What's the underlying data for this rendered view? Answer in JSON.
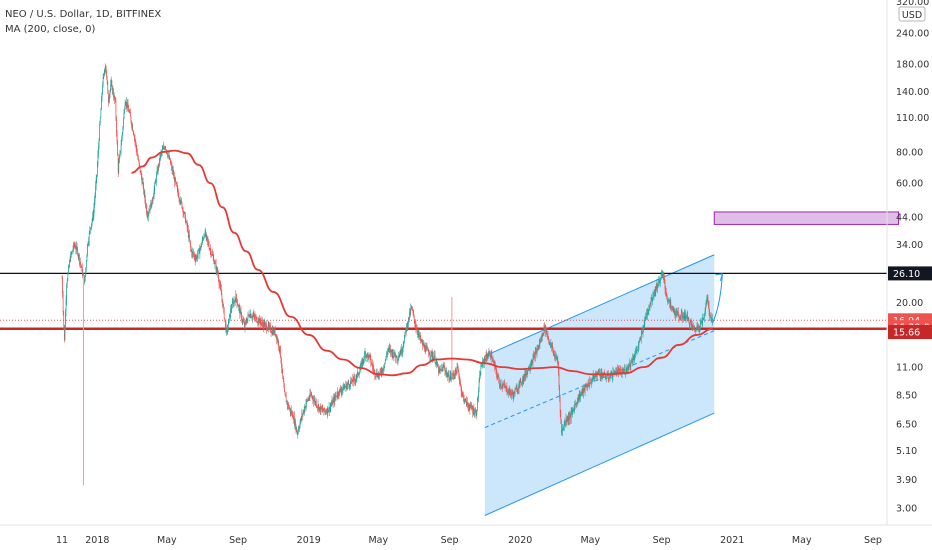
{
  "legend": {
    "symbol_line": "NEO / U.S. Dollar, 1D, BITFINEX",
    "indicator_line": "MA (200, close, 0)"
  },
  "currency_button": "USD",
  "colors": {
    "up_candle": "#26a69a",
    "down_candle": "#ef5350",
    "ma": "#e53935",
    "channel_fill": "#bbdefb",
    "channel_line": "#2196f3",
    "zone_fill": "#e1bee7",
    "zone_border": "#9c27b0",
    "support_line": "#c62828",
    "resistance_line": "#111111"
  },
  "chart_data": {
    "type": "candlestick",
    "scale": "log",
    "grid": false,
    "ylim": [
      2.6,
      350
    ],
    "xlim": [
      "2017-11-01",
      "2021-10-01"
    ],
    "x_tick_labels": [
      {
        "label": "11",
        "date": "2017-11-01"
      },
      {
        "label": "2018",
        "date": "2018-01-01"
      },
      {
        "label": "May",
        "date": "2018-05-01"
      },
      {
        "label": "Sep",
        "date": "2018-09-01"
      },
      {
        "label": "2019",
        "date": "2019-01-01"
      },
      {
        "label": "May",
        "date": "2019-05-01"
      },
      {
        "label": "Sep",
        "date": "2019-09-01"
      },
      {
        "label": "2020",
        "date": "2020-01-01"
      },
      {
        "label": "May",
        "date": "2020-05-01"
      },
      {
        "label": "Sep",
        "date": "2020-09-01"
      },
      {
        "label": "2021",
        "date": "2021-01-01"
      },
      {
        "label": "May",
        "date": "2021-05-01"
      },
      {
        "label": "Sep",
        "date": "2021-09-01"
      }
    ],
    "y_tick_labels": [
      "320.00",
      "240.00",
      "180.00",
      "140.00",
      "110.00",
      "80.00",
      "60.00",
      "44.00",
      "34.00",
      "26.10",
      "20.00",
      "16.94",
      "15.66",
      "11.00",
      "8.50",
      "6.50",
      "5.10",
      "3.90",
      "3.00"
    ],
    "price_badges": [
      {
        "label": "26.10",
        "value": 26.1,
        "color": "#131722"
      },
      {
        "label": "16.94",
        "value": 16.94,
        "color": "#ef5350"
      },
      {
        "label": "16:39:04",
        "value": 15.9,
        "color": "#ef5350"
      },
      {
        "label": "15.66",
        "value": 15.2,
        "color": "#c62828"
      }
    ],
    "horizontal_lines": [
      {
        "name": "resistance",
        "value": 26.1
      },
      {
        "name": "support",
        "value": 15.66
      }
    ],
    "price_path": [
      [
        "2017-11-01",
        25
      ],
      [
        "2017-11-05",
        14
      ],
      [
        "2017-11-09",
        24
      ],
      [
        "2017-11-15",
        30
      ],
      [
        "2017-11-22",
        34
      ],
      [
        "2017-11-28",
        32
      ],
      [
        "2017-12-05",
        27
      ],
      [
        "2017-12-10",
        24
      ],
      [
        "2017-12-15",
        34
      ],
      [
        "2017-12-20",
        40
      ],
      [
        "2017-12-25",
        45
      ],
      [
        "2017-12-31",
        65
      ],
      [
        "2018-01-05",
        100
      ],
      [
        "2018-01-10",
        150
      ],
      [
        "2018-01-15",
        180
      ],
      [
        "2018-01-20",
        130
      ],
      [
        "2018-01-25",
        150
      ],
      [
        "2018-02-01",
        125
      ],
      [
        "2018-02-06",
        68
      ],
      [
        "2018-02-12",
        90
      ],
      [
        "2018-02-18",
        130
      ],
      [
        "2018-02-25",
        115
      ],
      [
        "2018-03-05",
        95
      ],
      [
        "2018-03-12",
        75
      ],
      [
        "2018-03-20",
        60
      ],
      [
        "2018-03-28",
        45
      ],
      [
        "2018-04-05",
        50
      ],
      [
        "2018-04-12",
        62
      ],
      [
        "2018-04-20",
        78
      ],
      [
        "2018-04-28",
        85
      ],
      [
        "2018-05-05",
        75
      ],
      [
        "2018-05-12",
        65
      ],
      [
        "2018-05-20",
        55
      ],
      [
        "2018-05-28",
        48
      ],
      [
        "2018-06-05",
        40
      ],
      [
        "2018-06-12",
        32
      ],
      [
        "2018-06-20",
        30
      ],
      [
        "2018-06-28",
        33
      ],
      [
        "2018-07-05",
        38
      ],
      [
        "2018-07-12",
        34
      ],
      [
        "2018-07-20",
        30
      ],
      [
        "2018-07-28",
        26
      ],
      [
        "2018-08-05",
        20
      ],
      [
        "2018-08-12",
        15
      ],
      [
        "2018-08-20",
        19
      ],
      [
        "2018-08-28",
        21
      ],
      [
        "2018-09-05",
        18
      ],
      [
        "2018-09-12",
        16
      ],
      [
        "2018-09-20",
        18
      ],
      [
        "2018-09-28",
        17.5
      ],
      [
        "2018-10-05",
        17
      ],
      [
        "2018-10-12",
        16.5
      ],
      [
        "2018-10-20",
        16
      ],
      [
        "2018-10-28",
        15.5
      ],
      [
        "2018-11-05",
        15
      ],
      [
        "2018-11-12",
        13
      ],
      [
        "2018-11-20",
        8.5
      ],
      [
        "2018-11-28",
        7.5
      ],
      [
        "2018-12-05",
        7
      ],
      [
        "2018-12-12",
        6
      ],
      [
        "2018-12-20",
        7
      ],
      [
        "2018-12-28",
        8
      ],
      [
        "2019-01-05",
        8.5
      ],
      [
        "2019-01-12",
        8
      ],
      [
        "2019-01-20",
        7.5
      ],
      [
        "2019-01-28",
        7.3
      ],
      [
        "2019-02-05",
        7.5
      ],
      [
        "2019-02-12",
        8
      ],
      [
        "2019-02-20",
        8.7
      ],
      [
        "2019-02-28",
        9
      ],
      [
        "2019-03-08",
        9.3
      ],
      [
        "2019-03-16",
        9.6
      ],
      [
        "2019-03-24",
        10
      ],
      [
        "2019-04-01",
        11
      ],
      [
        "2019-04-08",
        12.5
      ],
      [
        "2019-04-16",
        12
      ],
      [
        "2019-04-24",
        10.5
      ],
      [
        "2019-05-02",
        10.2
      ],
      [
        "2019-05-10",
        11
      ],
      [
        "2019-05-18",
        13
      ],
      [
        "2019-05-26",
        12.5
      ],
      [
        "2019-06-03",
        12
      ],
      [
        "2019-06-11",
        13
      ],
      [
        "2019-06-19",
        16
      ],
      [
        "2019-06-27",
        19
      ],
      [
        "2019-07-05",
        16
      ],
      [
        "2019-07-13",
        14
      ],
      [
        "2019-07-21",
        13
      ],
      [
        "2019-07-29",
        12.5
      ],
      [
        "2019-08-06",
        12
      ],
      [
        "2019-08-14",
        10.5
      ],
      [
        "2019-08-22",
        11
      ],
      [
        "2019-08-30",
        10
      ],
      [
        "2019-09-07",
        10.2
      ],
      [
        "2019-09-15",
        10.8
      ],
      [
        "2019-09-23",
        8.5
      ],
      [
        "2019-10-01",
        7.8
      ],
      [
        "2019-10-09",
        7.5
      ],
      [
        "2019-10-17",
        7.2
      ],
      [
        "2019-10-25",
        11
      ],
      [
        "2019-11-02",
        12
      ],
      [
        "2019-11-10",
        12.5
      ],
      [
        "2019-11-18",
        11
      ],
      [
        "2019-11-26",
        9.5
      ],
      [
        "2019-12-04",
        9.2
      ],
      [
        "2019-12-12",
        8.8
      ],
      [
        "2019-12-20",
        8.5
      ],
      [
        "2019-12-28",
        9.2
      ],
      [
        "2020-01-05",
        9.8
      ],
      [
        "2020-01-12",
        10.5
      ],
      [
        "2020-01-20",
        11.5
      ],
      [
        "2020-01-28",
        12.5
      ],
      [
        "2020-02-05",
        14
      ],
      [
        "2020-02-12",
        16
      ],
      [
        "2020-02-20",
        14
      ],
      [
        "2020-02-28",
        12.5
      ],
      [
        "2020-03-06",
        11.5
      ],
      [
        "2020-03-12",
        6
      ],
      [
        "2020-03-20",
        6.8
      ],
      [
        "2020-03-28",
        7
      ],
      [
        "2020-04-05",
        7.8
      ],
      [
        "2020-04-13",
        8.5
      ],
      [
        "2020-04-21",
        9
      ],
      [
        "2020-04-29",
        9.5
      ],
      [
        "2020-05-07",
        10
      ],
      [
        "2020-05-15",
        10.5
      ],
      [
        "2020-05-23",
        10.2
      ],
      [
        "2020-05-31",
        10
      ],
      [
        "2020-06-08",
        10.3
      ],
      [
        "2020-06-16",
        10.6
      ],
      [
        "2020-06-24",
        10.4
      ],
      [
        "2020-07-02",
        10.8
      ],
      [
        "2020-07-10",
        11.5
      ],
      [
        "2020-07-18",
        12.5
      ],
      [
        "2020-07-26",
        14
      ],
      [
        "2020-08-03",
        17
      ],
      [
        "2020-08-11",
        19.5
      ],
      [
        "2020-08-19",
        22
      ],
      [
        "2020-08-27",
        24
      ],
      [
        "2020-09-03",
        26
      ],
      [
        "2020-09-10",
        21
      ],
      [
        "2020-09-18",
        19
      ],
      [
        "2020-09-26",
        18
      ],
      [
        "2020-10-04",
        17.5
      ],
      [
        "2020-10-12",
        17.8
      ],
      [
        "2020-10-20",
        16.5
      ],
      [
        "2020-10-28",
        15.5
      ],
      [
        "2020-11-05",
        16.2
      ],
      [
        "2020-11-12",
        17
      ],
      [
        "2020-11-18",
        21
      ],
      [
        "2020-11-24",
        17.5
      ],
      [
        "2020-11-28",
        16.94
      ]
    ],
    "spikes": [
      {
        "date": "2017-12-08",
        "high": 24,
        "low": 3.7
      },
      {
        "date": "2019-09-05",
        "high": 21,
        "low": 10
      }
    ],
    "ma_series": {
      "name": "MA (200, close, 0)",
      "points": [
        [
          "2018-03-01",
          66
        ],
        [
          "2018-03-20",
          70
        ],
        [
          "2018-04-05",
          76
        ],
        [
          "2018-04-25",
          80
        ],
        [
          "2018-05-15",
          81
        ],
        [
          "2018-06-05",
          79
        ],
        [
          "2018-06-25",
          71
        ],
        [
          "2018-07-15",
          60
        ],
        [
          "2018-08-05",
          48
        ],
        [
          "2018-08-25",
          38
        ],
        [
          "2018-09-15",
          32
        ],
        [
          "2018-10-05",
          27
        ],
        [
          "2018-11-01",
          22
        ],
        [
          "2018-12-01",
          17.5
        ],
        [
          "2019-01-01",
          14.8
        ],
        [
          "2019-02-01",
          12.8
        ],
        [
          "2019-03-01",
          11.8
        ],
        [
          "2019-04-01",
          10.9
        ],
        [
          "2019-05-01",
          10.3
        ],
        [
          "2019-05-25",
          10.2
        ],
        [
          "2019-06-20",
          10.4
        ],
        [
          "2019-07-15",
          11.2
        ],
        [
          "2019-08-10",
          11.8
        ],
        [
          "2019-09-05",
          11.9
        ],
        [
          "2019-10-01",
          11.8
        ],
        [
          "2019-11-01",
          11.4
        ],
        [
          "2019-12-01",
          11
        ],
        [
          "2020-01-01",
          10.8
        ],
        [
          "2020-02-01",
          10.9
        ],
        [
          "2020-03-01",
          11
        ],
        [
          "2020-04-01",
          10.6
        ],
        [
          "2020-05-01",
          10.3
        ],
        [
          "2020-06-01",
          10.3
        ],
        [
          "2020-07-01",
          10.4
        ],
        [
          "2020-08-01",
          11
        ],
        [
          "2020-09-01",
          12
        ],
        [
          "2020-10-01",
          13.5
        ],
        [
          "2020-11-01",
          14.8
        ],
        [
          "2020-11-28",
          15.66
        ]
      ]
    },
    "channel": {
      "upper": [
        [
          "2019-11-01",
          12.2
        ],
        [
          "2020-12-01",
          31
        ]
      ],
      "lower": [
        [
          "2019-11-01",
          2.8
        ],
        [
          "2020-12-01",
          7.2
        ]
      ],
      "mid": [
        [
          "2019-11-01",
          6.3
        ],
        [
          "2020-12-01",
          15.4
        ]
      ]
    },
    "target_zone": {
      "from": "2020-12-01",
      "to": "2021-10-15",
      "low": 41,
      "high": 46
    },
    "projection_arrow": [
      [
        "2020-11-28",
        16.5
      ],
      [
        "2020-12-15",
        26
      ]
    ]
  }
}
